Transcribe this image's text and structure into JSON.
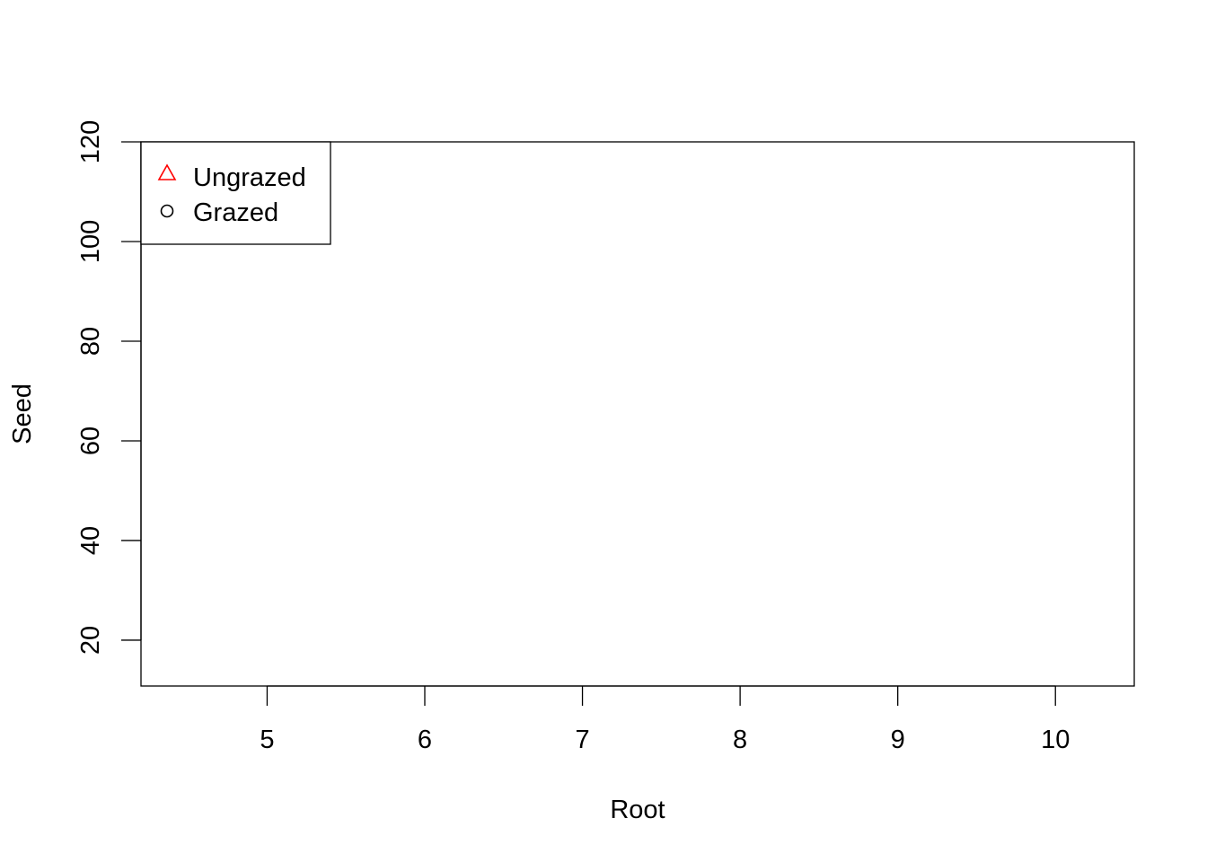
{
  "chart_data": {
    "type": "scatter",
    "title": "",
    "xlabel": "Root",
    "ylabel": "Seed",
    "xlim": [
      4.2,
      10.5
    ],
    "ylim": [
      10.8,
      120
    ],
    "x_ticks": [
      5,
      6,
      7,
      8,
      9,
      10
    ],
    "y_ticks": [
      20,
      40,
      60,
      80,
      100,
      120
    ],
    "grid": false,
    "legend": {
      "placement": "top-left",
      "entries": [
        {
          "label": "Ungrazed",
          "marker": "triangle",
          "color": "#ff0000"
        },
        {
          "label": "Grazed",
          "marker": "circle",
          "color": "#000000"
        }
      ]
    },
    "series": [
      {
        "name": "Ungrazed",
        "x": [],
        "y": []
      },
      {
        "name": "Grazed",
        "x": [],
        "y": []
      }
    ]
  }
}
